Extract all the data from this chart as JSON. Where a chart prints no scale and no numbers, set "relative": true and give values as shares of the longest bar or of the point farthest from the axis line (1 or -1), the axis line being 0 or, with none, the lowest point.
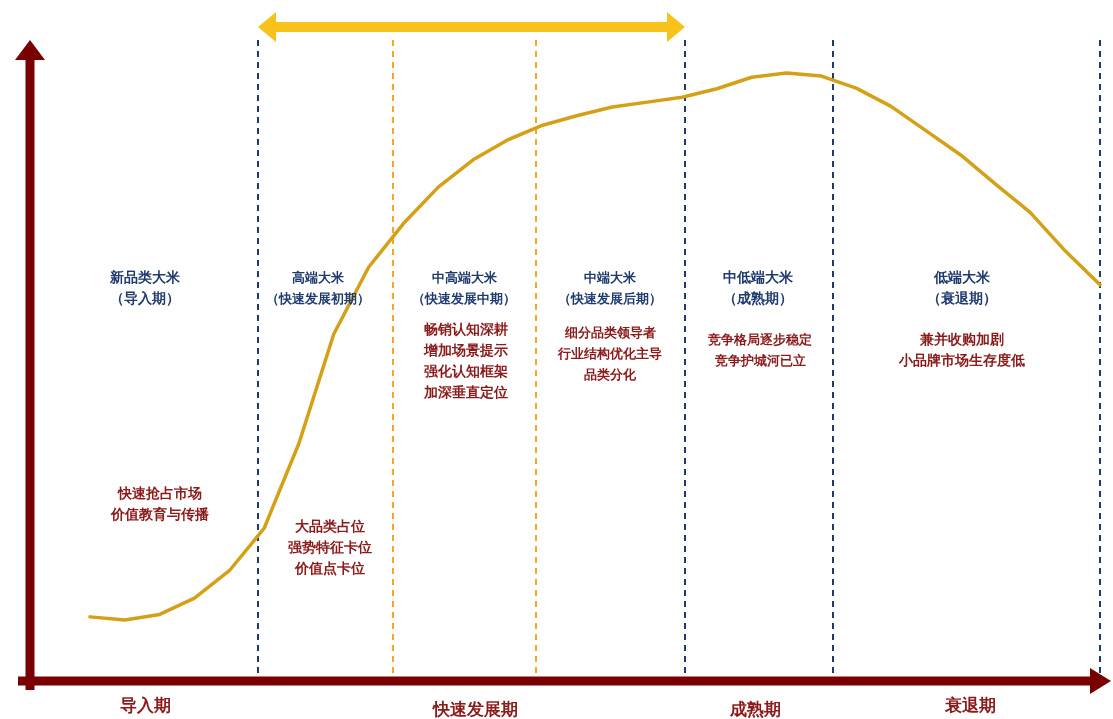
{
  "chart_data": {
    "type": "line",
    "relative": true,
    "categories": [
      null,
      null,
      null,
      null,
      null,
      null,
      null,
      null,
      null,
      null,
      null,
      null,
      null,
      null,
      null,
      null,
      null,
      null,
      null,
      null,
      null,
      null,
      null,
      null,
      null,
      null,
      null,
      null,
      null,
      null
    ],
    "series": [
      {
        "color": "#d4a017",
        "values": [
          0.104,
          0.099,
          0.108,
          0.135,
          0.18,
          0.25,
          0.39,
          0.57,
          0.68,
          0.752,
          0.812,
          0.857,
          0.89,
          0.914,
          0.93,
          0.944,
          0.952,
          0.96,
          0.974,
          0.993,
          1,
          0.995,
          0.975,
          0.945,
          0.905,
          0.865,
          0.817,
          0.77,
          0.707,
          0.651
        ]
      }
    ],
    "annotations": [
      "新品类大米（导入期）",
      "高端大米（快速发展初期）",
      "中高端大米（快速发展中期）",
      "中端大米（快速发展后期）",
      "中低端大米（成熟期）",
      "低端大米（衰退期）",
      "快速抢占市场价值教育与传播",
      "大品类占位强势特征卡位价值点卡位",
      "畅销认知深耕增加场景提示强化认知框架加深垂直定位",
      "细分品类领导者行业结构优化主导品类分化",
      "竞争格局逐步稳定竞争护城河已立",
      "兼并收购加剧小品牌市场生存度低",
      "导入期",
      "快速发展期",
      "成熟期",
      "衰退期"
    ]
  }
}
